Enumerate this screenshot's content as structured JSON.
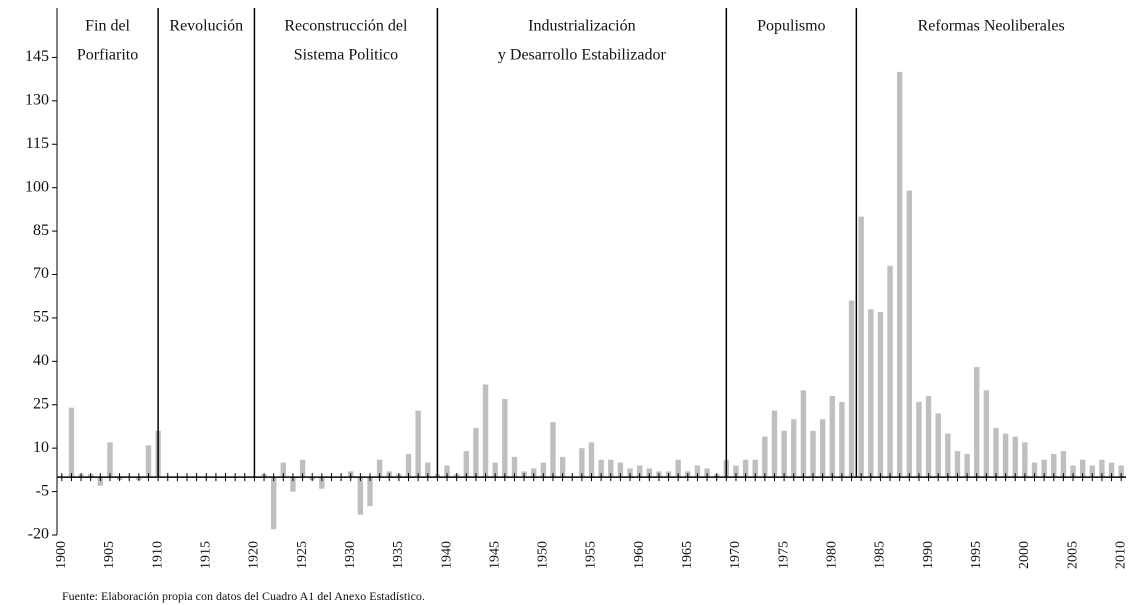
{
  "chart_data": {
    "type": "bar",
    "x": [
      1900,
      1901,
      1902,
      1903,
      1904,
      1905,
      1906,
      1907,
      1908,
      1909,
      1910,
      1911,
      1912,
      1913,
      1914,
      1915,
      1916,
      1917,
      1918,
      1919,
      1920,
      1921,
      1922,
      1923,
      1924,
      1925,
      1926,
      1927,
      1928,
      1929,
      1930,
      1931,
      1932,
      1933,
      1934,
      1935,
      1936,
      1937,
      1938,
      1939,
      1940,
      1941,
      1942,
      1943,
      1944,
      1945,
      1946,
      1947,
      1948,
      1949,
      1950,
      1951,
      1952,
      1953,
      1954,
      1955,
      1956,
      1957,
      1958,
      1959,
      1960,
      1961,
      1962,
      1963,
      1964,
      1965,
      1966,
      1967,
      1968,
      1969,
      1970,
      1971,
      1972,
      1973,
      1974,
      1975,
      1976,
      1977,
      1978,
      1979,
      1980,
      1981,
      1982,
      1983,
      1984,
      1985,
      1986,
      1987,
      1988,
      1989,
      1990,
      1991,
      1992,
      1993,
      1994,
      1995,
      1996,
      1997,
      1998,
      1999,
      2000,
      2001,
      2002,
      2003,
      2004,
      2005,
      2006,
      2007,
      2008,
      2009,
      2010
    ],
    "values": [
      0,
      24,
      1,
      1,
      -3,
      12,
      -1,
      0,
      -1,
      11,
      16,
      null,
      null,
      null,
      null,
      null,
      null,
      null,
      null,
      null,
      null,
      1,
      -18,
      5,
      -5,
      6,
      -1,
      -4,
      0,
      0,
      2,
      -13,
      -10,
      6,
      2,
      1,
      8,
      23,
      5,
      1,
      4,
      1,
      9,
      17,
      32,
      5,
      27,
      7,
      2,
      3,
      5,
      19,
      7,
      0,
      10,
      12,
      6,
      6,
      5,
      3,
      4,
      3,
      2,
      2,
      6,
      2,
      4,
      3,
      1,
      6,
      4,
      6,
      6,
      14,
      23,
      16,
      20,
      30,
      16,
      20,
      28,
      26,
      61,
      90,
      58,
      57,
      73,
      140,
      99,
      26,
      28,
      22,
      15,
      9,
      8,
      38,
      30,
      17,
      15,
      14,
      12,
      5,
      6,
      8,
      9,
      4,
      6,
      4,
      6,
      5,
      4
    ],
    "color": "#bfbfbf",
    "xlim": [
      1899.5,
      2010.5
    ],
    "xticks": [
      1900,
      1905,
      1910,
      1915,
      1920,
      1925,
      1930,
      1935,
      1940,
      1945,
      1950,
      1955,
      1960,
      1965,
      1970,
      1975,
      1980,
      1985,
      1990,
      1995,
      2000,
      2005,
      2010
    ],
    "ylim": [
      -20,
      160
    ],
    "yticks": [
      -20,
      -5,
      10,
      25,
      40,
      55,
      70,
      85,
      100,
      115,
      130,
      145
    ],
    "period_boundaries": [
      1910,
      1920,
      1939,
      1969,
      1982.5
    ],
    "periods": [
      [
        "Fin del",
        "Porfiarito"
      ],
      [
        "Revolución"
      ],
      [
        "Reconstrucción del",
        "Sistema Politico"
      ],
      [
        "Industrialización",
        "y Desarrollo Estabilizador"
      ],
      [
        "Populismo"
      ],
      [
        "Reformas Neoliberales"
      ]
    ],
    "source": "Fuente: Elaboración propia con datos del Cuadro A1 del Anexo Estadístico."
  }
}
